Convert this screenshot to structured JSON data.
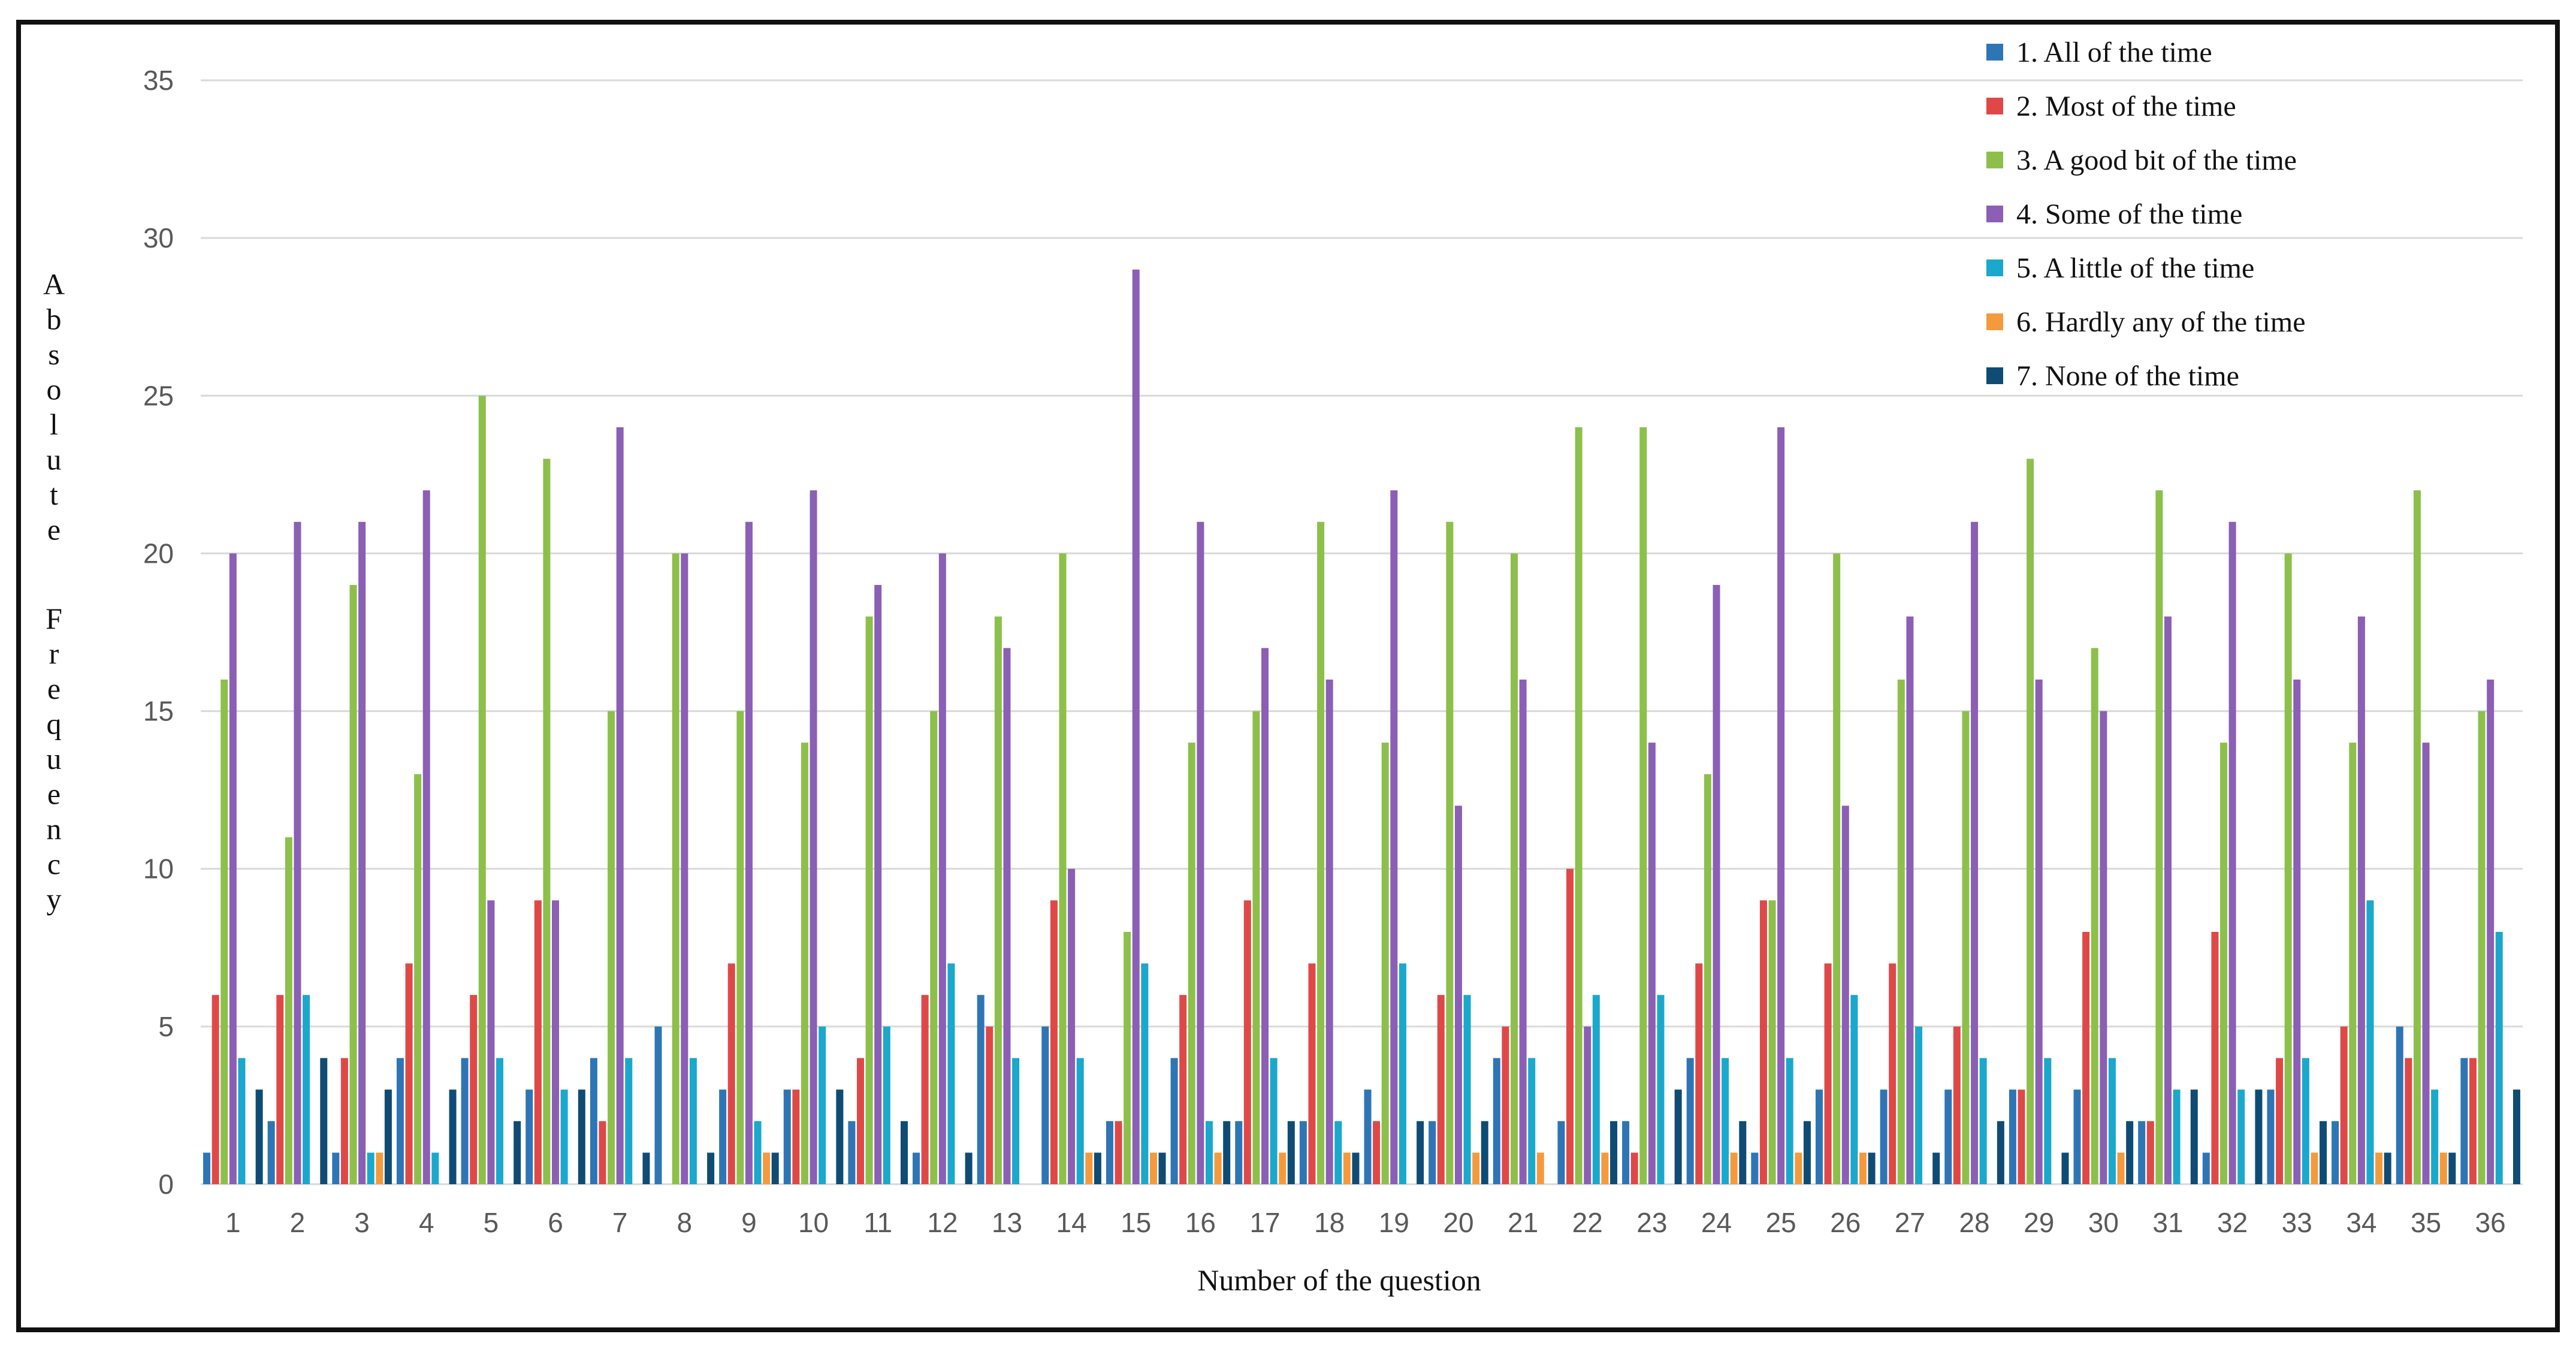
{
  "chart_data": {
    "type": "bar",
    "title": "",
    "xlabel": "Number of the question",
    "ylabel": "Absolute Frequency",
    "ylim": [
      0,
      35
    ],
    "yticks": [
      "0",
      "5",
      "10",
      "15",
      "20",
      "25",
      "30",
      "35"
    ],
    "grid": true,
    "legend_position": "top-right",
    "categories": [
      "1",
      "2",
      "3",
      "4",
      "5",
      "6",
      "7",
      "8",
      "9",
      "10",
      "11",
      "12",
      "13",
      "14",
      "15",
      "16",
      "17",
      "18",
      "19",
      "20",
      "21",
      "22",
      "23",
      "24",
      "25",
      "26",
      "27",
      "28",
      "29",
      "30",
      "31",
      "32",
      "33",
      "34",
      "35",
      "36"
    ],
    "series": [
      {
        "name": "1. All of the time",
        "color": "#2e75b6",
        "values": [
          1,
          2,
          1,
          4,
          4,
          3,
          4,
          5,
          3,
          3,
          2,
          1,
          6,
          5,
          2,
          4,
          2,
          2,
          3,
          2,
          4,
          2,
          2,
          4,
          1,
          3,
          3,
          3,
          3,
          3,
          2,
          1,
          3,
          2,
          5,
          4
        ]
      },
      {
        "name": "2. Most of the time",
        "color": "#e04848",
        "values": [
          6,
          6,
          4,
          7,
          6,
          9,
          2,
          0,
          7,
          3,
          4,
          6,
          5,
          9,
          2,
          6,
          9,
          7,
          2,
          6,
          5,
          10,
          1,
          7,
          9,
          7,
          7,
          5,
          3,
          8,
          2,
          8,
          4,
          5,
          4,
          4
        ]
      },
      {
        "name": "3. A good bit of the time",
        "color": "#8cc04a",
        "values": [
          16,
          11,
          19,
          13,
          25,
          23,
          15,
          20,
          15,
          14,
          18,
          15,
          18,
          20,
          8,
          14,
          15,
          21,
          14,
          21,
          20,
          24,
          24,
          13,
          9,
          20,
          16,
          15,
          23,
          17,
          22,
          14,
          20,
          14,
          22,
          15
        ]
      },
      {
        "name": "4. Some of the time",
        "color": "#8b5fb5",
        "values": [
          20,
          21,
          21,
          22,
          9,
          9,
          24,
          20,
          21,
          22,
          19,
          20,
          17,
          10,
          29,
          21,
          17,
          16,
          22,
          12,
          16,
          5,
          14,
          19,
          24,
          12,
          18,
          21,
          16,
          15,
          18,
          21,
          16,
          18,
          14,
          16
        ]
      },
      {
        "name": "5. A little of the time",
        "color": "#1aa8cc",
        "values": [
          4,
          6,
          1,
          1,
          4,
          3,
          4,
          4,
          2,
          5,
          5,
          7,
          4,
          4,
          7,
          2,
          4,
          2,
          7,
          6,
          4,
          6,
          6,
          4,
          4,
          6,
          5,
          4,
          4,
          4,
          3,
          3,
          4,
          9,
          3,
          8
        ]
      },
      {
        "name": "6. Hardly any of the time",
        "color": "#f59a3c",
        "values": [
          0,
          0,
          1,
          0,
          0,
          0,
          0,
          0,
          1,
          0,
          0,
          0,
          0,
          1,
          1,
          1,
          1,
          1,
          0,
          1,
          1,
          1,
          0,
          1,
          1,
          1,
          0,
          0,
          0,
          1,
          0,
          0,
          1,
          1,
          1,
          0
        ]
      },
      {
        "name": "7. None of the time",
        "color": "#0f4c75",
        "values": [
          3,
          4,
          3,
          3,
          2,
          3,
          1,
          1,
          1,
          3,
          2,
          1,
          0,
          1,
          1,
          2,
          2,
          1,
          2,
          2,
          0,
          2,
          3,
          2,
          2,
          1,
          1,
          2,
          1,
          2,
          3,
          3,
          2,
          1,
          1,
          3
        ]
      }
    ]
  }
}
